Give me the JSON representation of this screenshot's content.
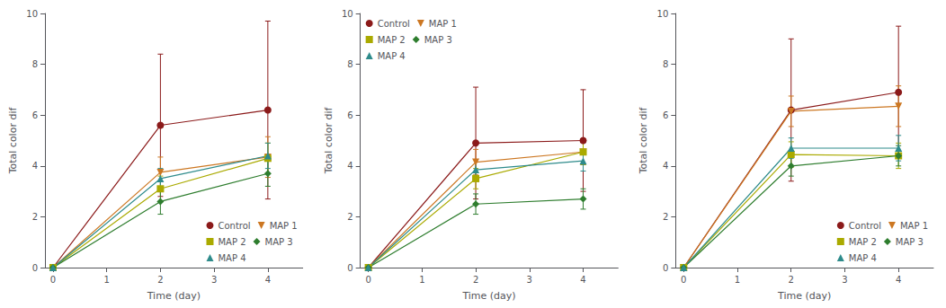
{
  "chart_data": [
    {
      "type": "line",
      "xlabel": "Time (day)",
      "ylabel": "Total color dif",
      "x": [
        0,
        2,
        4
      ],
      "xlim": [
        -0.15,
        4.65
      ],
      "xticks": [
        0,
        1,
        2,
        3,
        4
      ],
      "ylim": [
        0,
        10
      ],
      "yticks": [
        0,
        2,
        4,
        6,
        8,
        10
      ],
      "grid": false,
      "legend": "lower right",
      "series": [
        {
          "name": "Control",
          "color": "#8B1A1A",
          "marker": "circle",
          "values": [
            0,
            5.6,
            6.2
          ],
          "yerr": [
            0,
            2.8,
            3.5
          ]
        },
        {
          "name": "MAP 1",
          "color": "#CC7722",
          "marker": "triangle-down",
          "values": [
            0,
            3.75,
            4.35
          ],
          "yerr": [
            0,
            0.6,
            0.8
          ]
        },
        {
          "name": "MAP 2",
          "color": "#AAAA00",
          "marker": "square",
          "values": [
            0,
            3.1,
            4.3
          ],
          "yerr": [
            0,
            0.5,
            0.6
          ]
        },
        {
          "name": "MAP 3",
          "color": "#2E7D2E",
          "marker": "diamond",
          "values": [
            0,
            2.6,
            3.7
          ],
          "yerr": [
            0,
            0.5,
            0.5
          ]
        },
        {
          "name": "MAP 4",
          "color": "#2E8B8B",
          "marker": "triangle-up",
          "values": [
            0,
            3.5,
            4.4
          ],
          "yerr": [
            0,
            0.4,
            0.5
          ]
        }
      ]
    },
    {
      "type": "line",
      "xlabel": "Time (day)",
      "ylabel": "Total color dif",
      "x": [
        0,
        2,
        4
      ],
      "xlim": [
        -0.15,
        4.65
      ],
      "xticks": [
        0,
        1,
        2,
        3,
        4
      ],
      "ylim": [
        0,
        10
      ],
      "yticks": [
        0,
        2,
        4,
        6,
        8,
        10
      ],
      "grid": false,
      "legend": "upper left",
      "series": [
        {
          "name": "Control",
          "color": "#8B1A1A",
          "marker": "circle",
          "values": [
            0,
            4.9,
            5.0
          ],
          "yerr": [
            0,
            2.2,
            2.0
          ]
        },
        {
          "name": "MAP 1",
          "color": "#CC7722",
          "marker": "triangle-down",
          "values": [
            0,
            4.15,
            4.55
          ],
          "yerr": [
            0,
            0.5,
            0.5
          ]
        },
        {
          "name": "MAP 2",
          "color": "#AAAA00",
          "marker": "square",
          "values": [
            0,
            3.5,
            4.55
          ],
          "yerr": [
            0,
            0.4,
            0.5
          ]
        },
        {
          "name": "MAP 3",
          "color": "#2E7D2E",
          "marker": "diamond",
          "values": [
            0,
            2.5,
            2.7
          ],
          "yerr": [
            0,
            0.4,
            0.4
          ]
        },
        {
          "name": "MAP 4",
          "color": "#2E8B8B",
          "marker": "triangle-up",
          "values": [
            0,
            3.85,
            4.2
          ],
          "yerr": [
            0,
            0.4,
            0.4
          ]
        }
      ]
    },
    {
      "type": "line",
      "xlabel": "Time (day)",
      "ylabel": "Total color dif",
      "x": [
        0,
        2,
        4
      ],
      "xlim": [
        -0.15,
        4.65
      ],
      "xticks": [
        0,
        1,
        2,
        3,
        4
      ],
      "ylim": [
        0,
        10
      ],
      "yticks": [
        0,
        2,
        4,
        6,
        8,
        10
      ],
      "grid": false,
      "legend": "lower right",
      "series": [
        {
          "name": "Control",
          "color": "#8B1A1A",
          "marker": "circle",
          "values": [
            0,
            6.2,
            6.9
          ],
          "yerr": [
            0,
            2.8,
            2.6
          ]
        },
        {
          "name": "MAP 1",
          "color": "#CC7722",
          "marker": "triangle-down",
          "values": [
            0,
            6.15,
            6.35
          ],
          "yerr": [
            0,
            0.6,
            0.8
          ]
        },
        {
          "name": "MAP 2",
          "color": "#AAAA00",
          "marker": "square",
          "values": [
            0,
            4.45,
            4.4
          ],
          "yerr": [
            0,
            0.5,
            0.5
          ]
        },
        {
          "name": "MAP 3",
          "color": "#2E7D2E",
          "marker": "diamond",
          "values": [
            0,
            4.0,
            4.4
          ],
          "yerr": [
            0,
            0.4,
            0.4
          ]
        },
        {
          "name": "MAP 4",
          "color": "#2E8B8B",
          "marker": "triangle-up",
          "values": [
            0,
            4.7,
            4.7
          ],
          "yerr": [
            0,
            0.4,
            0.5
          ]
        }
      ]
    }
  ]
}
